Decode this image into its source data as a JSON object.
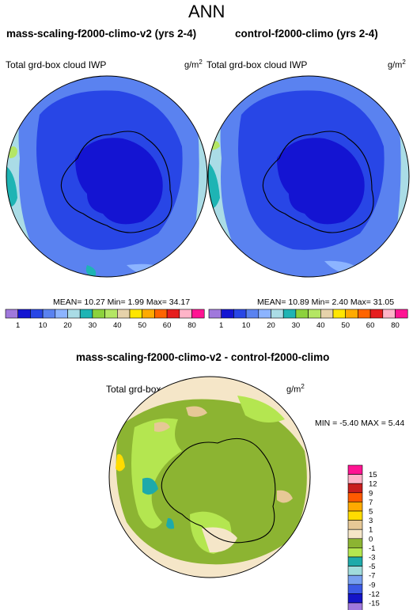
{
  "page_title": "ANN",
  "panels": [
    {
      "title": "mass-scaling-f2000-climo-v2 (yrs 2-4)",
      "field": "Total grd-box cloud IWP",
      "units_base": "g/m",
      "units_exp": "2",
      "stats": "MEAN=  10.27  Min=   1.99  Max=  34.17",
      "colorbar": {
        "labels": [
          "1",
          "10",
          "20",
          "30",
          "40",
          "50",
          "60",
          "80"
        ],
        "colors": [
          "#a078dc",
          "#1414d2",
          "#2846e6",
          "#5a82f0",
          "#8cb4ff",
          "#aadce6",
          "#1eb4b4",
          "#8cd23c",
          "#b4e664",
          "#e6d2aa",
          "#ffe600",
          "#ffaa00",
          "#ff6400",
          "#e61e1e",
          "#ffb4c8",
          "#ff1493"
        ]
      }
    },
    {
      "title": "control-f2000-climo (yrs 2-4)",
      "field": "Total grd-box cloud IWP",
      "units_base": "g/m",
      "units_exp": "2",
      "stats": "MEAN=  10.89  Min=   2.40  Max=  31.05",
      "colorbar": {
        "labels": [
          "1",
          "10",
          "20",
          "30",
          "40",
          "50",
          "60",
          "80"
        ],
        "colors": [
          "#a078dc",
          "#1414d2",
          "#2846e6",
          "#5a82f0",
          "#8cb4ff",
          "#aadce6",
          "#1eb4b4",
          "#8cd23c",
          "#b4e664",
          "#e6d2aa",
          "#ffe600",
          "#ffaa00",
          "#ff6400",
          "#e61e1e",
          "#ffb4c8",
          "#ff1493"
        ]
      }
    }
  ],
  "diff_panel": {
    "title": "mass-scaling-f2000-climo-v2 - control-f2000-climo",
    "field": "Total grd-box cloud IWP",
    "units_base": "g/m",
    "units_exp": "2",
    "stats": "MIN = -5.40  MAX =  5.44",
    "colorbar": {
      "labels": [
        "15",
        "12",
        "9",
        "7",
        "5",
        "3",
        "1",
        "0",
        "-1",
        "-3",
        "-5",
        "-7",
        "-9",
        "-12",
        "-15"
      ],
      "colors": [
        "#ff1493",
        "#ffb4c8",
        "#c81e1e",
        "#ff5a00",
        "#ffaa00",
        "#ffdc00",
        "#e6c896",
        "#f5e6c8",
        "#8cb432",
        "#b4e650",
        "#1eaaaa",
        "#a0dcdc",
        "#78a0f0",
        "#3c5ae6",
        "#1414c8",
        "#a078dc"
      ]
    }
  },
  "chart_data": [
    {
      "type": "heatmap",
      "title": "mass-scaling-f2000-climo-v2 (yrs 2-4)",
      "field": "Total grd-box cloud IWP",
      "units": "g/m2",
      "projection": "south polar stereographic",
      "mean": 10.27,
      "min": 1.99,
      "max": 34.17,
      "contour_levels": [
        1,
        5,
        10,
        15,
        20,
        25,
        30,
        35,
        40,
        45,
        50,
        55,
        60,
        70,
        80
      ]
    },
    {
      "type": "heatmap",
      "title": "control-f2000-climo (yrs 2-4)",
      "field": "Total grd-box cloud IWP",
      "units": "g/m2",
      "projection": "south polar stereographic",
      "mean": 10.89,
      "min": 2.4,
      "max": 31.05,
      "contour_levels": [
        1,
        5,
        10,
        15,
        20,
        25,
        30,
        35,
        40,
        45,
        50,
        55,
        60,
        70,
        80
      ]
    },
    {
      "type": "heatmap",
      "title": "mass-scaling-f2000-climo-v2 - control-f2000-climo",
      "field": "Total grd-box cloud IWP",
      "units": "g/m2",
      "projection": "south polar stereographic",
      "min": -5.4,
      "max": 5.44,
      "contour_levels": [
        -15,
        -12,
        -9,
        -7,
        -5,
        -3,
        -1,
        0,
        1,
        3,
        5,
        7,
        9,
        12,
        15
      ]
    }
  ]
}
